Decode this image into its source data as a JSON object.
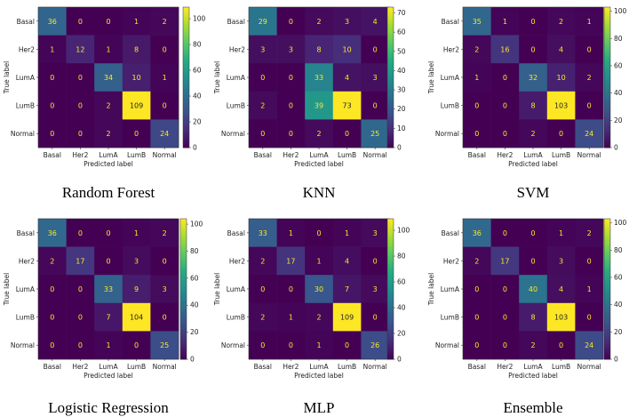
{
  "chart_data": [
    {
      "type": "heatmap",
      "title": "Random Forest",
      "xlabel": "Predicted label",
      "ylabel": "True label",
      "categories": [
        "Basal",
        "Her2",
        "LumA",
        "LumB",
        "Normal"
      ],
      "matrix": [
        [
          36,
          0,
          0,
          1,
          2
        ],
        [
          1,
          12,
          1,
          8,
          0
        ],
        [
          0,
          0,
          34,
          10,
          1
        ],
        [
          0,
          0,
          2,
          109,
          0
        ],
        [
          0,
          0,
          2,
          0,
          24
        ]
      ],
      "colorbar_ticks": [
        0,
        20,
        40,
        60,
        80,
        100
      ],
      "colorbar_max": 109
    },
    {
      "type": "heatmap",
      "title": "KNN",
      "xlabel": "Predicted label",
      "ylabel": "True label",
      "categories": [
        "Basal",
        "Her2",
        "LumA",
        "LumB",
        "Normal"
      ],
      "matrix": [
        [
          29,
          0,
          2,
          3,
          4
        ],
        [
          3,
          3,
          8,
          10,
          0
        ],
        [
          0,
          0,
          33,
          4,
          3
        ],
        [
          2,
          0,
          39,
          73,
          0
        ],
        [
          0,
          0,
          2,
          0,
          25
        ]
      ],
      "colorbar_ticks": [
        0,
        10,
        20,
        30,
        40,
        50,
        60,
        70
      ],
      "colorbar_max": 73
    },
    {
      "type": "heatmap",
      "title": "SVM",
      "xlabel": "Predicted label",
      "ylabel": "True label",
      "categories": [
        "Basal",
        "Her2",
        "LumA",
        "LumB",
        "Normal"
      ],
      "matrix": [
        [
          35,
          1,
          0,
          2,
          1
        ],
        [
          2,
          16,
          0,
          4,
          0
        ],
        [
          1,
          0,
          32,
          10,
          2
        ],
        [
          0,
          0,
          8,
          103,
          0
        ],
        [
          0,
          0,
          2,
          0,
          24
        ]
      ],
      "colorbar_ticks": [
        0,
        20,
        40,
        60,
        80,
        100
      ],
      "colorbar_max": 103
    },
    {
      "type": "heatmap",
      "title": "Logistic Regression",
      "xlabel": "Predicted label",
      "ylabel": "True label",
      "categories": [
        "Basal",
        "Her2",
        "LumA",
        "LumB",
        "Normal"
      ],
      "matrix": [
        [
          36,
          0,
          0,
          1,
          2
        ],
        [
          2,
          17,
          0,
          3,
          0
        ],
        [
          0,
          0,
          33,
          9,
          3
        ],
        [
          0,
          0,
          7,
          104,
          0
        ],
        [
          0,
          0,
          1,
          0,
          25
        ]
      ],
      "colorbar_ticks": [
        0,
        20,
        40,
        60,
        80,
        100
      ],
      "colorbar_max": 104
    },
    {
      "type": "heatmap",
      "title": "MLP",
      "xlabel": "Predicted label",
      "ylabel": "True label",
      "categories": [
        "Basal",
        "Her2",
        "LumA",
        "LumB",
        "Normal"
      ],
      "matrix": [
        [
          33,
          1,
          0,
          1,
          3
        ],
        [
          2,
          17,
          1,
          4,
          0
        ],
        [
          0,
          0,
          30,
          7,
          3
        ],
        [
          2,
          1,
          2,
          109,
          0
        ],
        [
          0,
          0,
          1,
          0,
          26
        ]
      ],
      "colorbar_ticks": [
        0,
        20,
        40,
        60,
        80,
        100
      ],
      "colorbar_max": 109
    },
    {
      "type": "heatmap",
      "title": "Ensemble",
      "xlabel": "Predicted label",
      "ylabel": "True label",
      "categories": [
        "Basal",
        "Her2",
        "LumA",
        "LumB",
        "Normal"
      ],
      "matrix": [
        [
          36,
          0,
          0,
          1,
          2
        ],
        [
          2,
          17,
          0,
          3,
          0
        ],
        [
          0,
          0,
          40,
          4,
          1
        ],
        [
          0,
          0,
          8,
          103,
          0
        ],
        [
          0,
          0,
          2,
          0,
          24
        ]
      ],
      "colorbar_ticks": [
        0,
        20,
        40,
        60,
        80,
        100
      ],
      "colorbar_max": 103
    }
  ],
  "colormap": "viridis"
}
